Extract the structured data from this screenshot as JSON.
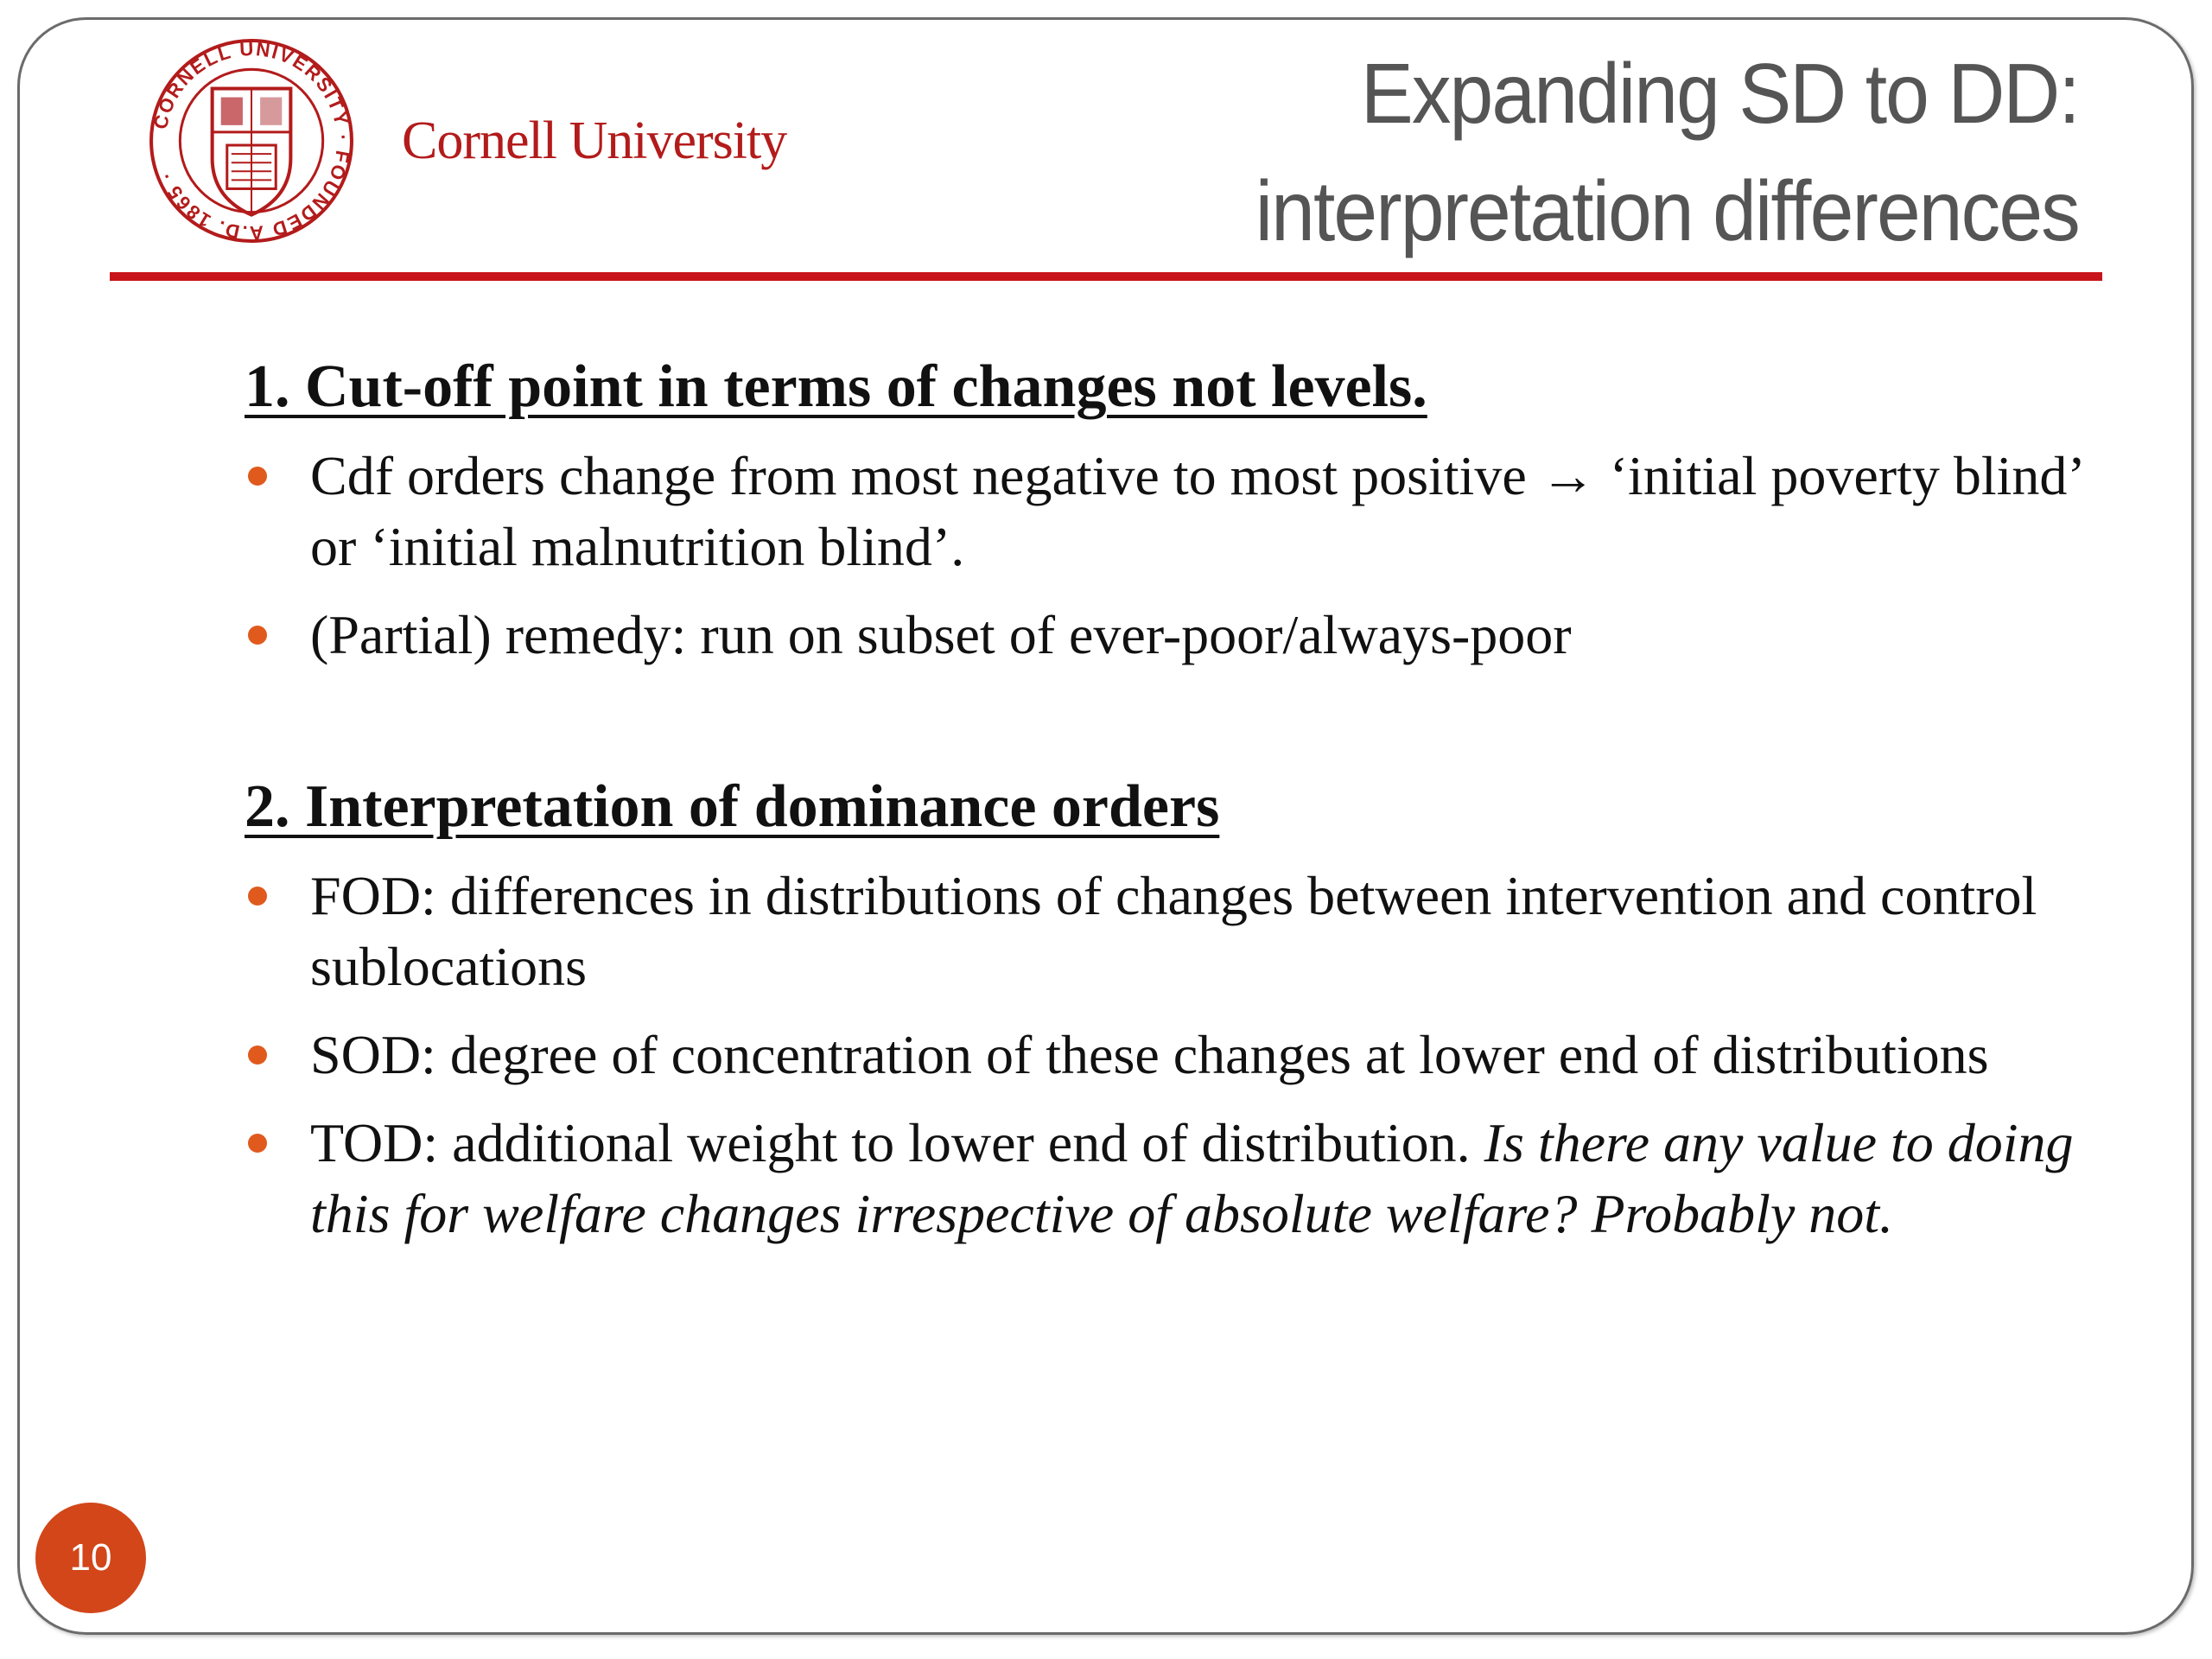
{
  "header": {
    "logo_text": "CORNELL UNIVERSITY FOUNDED A.D. 1865",
    "brand": "Cornell University",
    "title_line1": "Expanding SD to DD:",
    "title_line2": "interpretation differences"
  },
  "colors": {
    "brand_red": "#b31b1b",
    "rule_red": "#c8141b",
    "bullet_orange": "#e05a1e",
    "page_badge": "#d2461a"
  },
  "sections": [
    {
      "heading": "1. Cut-off point in terms of changes not levels.",
      "bullets": [
        {
          "text": "Cdf orders change from most negative to most positive → ‘initial poverty blind’ or ‘initial malnutrition blind’.",
          "italic": ""
        },
        {
          "text": "(Partial) remedy: run on subset of ever-poor/always-poor",
          "italic": ""
        }
      ]
    },
    {
      "heading": "2. Interpretation of dominance orders",
      "bullets": [
        {
          "text": "FOD: differences in distributions of changes between intervention and control sublocations",
          "italic": ""
        },
        {
          "text": "SOD: degree of concentration of these changes at lower end of distributions",
          "italic": ""
        },
        {
          "text": "TOD: additional weight to lower end of distribution. ",
          "italic": "Is there any value to doing this for welfare changes irrespective of absolute welfare? Probably not."
        }
      ]
    }
  ],
  "page_number": "10"
}
